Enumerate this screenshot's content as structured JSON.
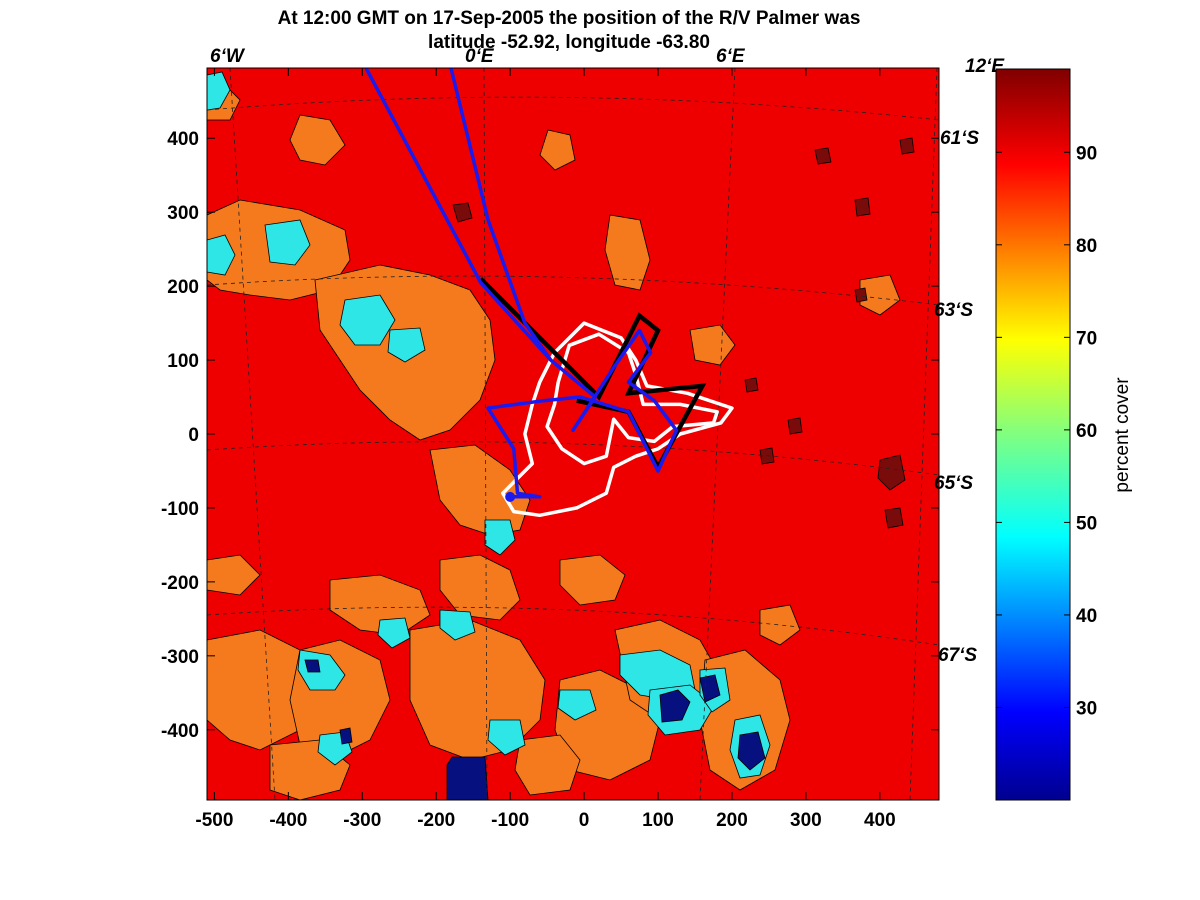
{
  "chart_data": {
    "type": "contour",
    "title_line1": "At 12:00 GMT on 17-Sep-2005 the position of the R/V Palmer was",
    "title_line2": "latitude -52.92, longitude -63.80",
    "xlim": [
      -510,
      480
    ],
    "ylim": [
      -495,
      495
    ],
    "x_ticks": [
      -500,
      -400,
      -300,
      -200,
      -100,
      0,
      100,
      200,
      300,
      400
    ],
    "y_ticks": [
      400,
      300,
      200,
      100,
      0,
      -100,
      -200,
      -300,
      -400
    ],
    "longitude_labels": [
      "6‘W",
      "0‘E",
      "6‘E",
      "12‘E"
    ],
    "latitude_labels": [
      "61‘S",
      "63‘S",
      "65‘S",
      "67‘S"
    ],
    "colorbar": {
      "label": "percent cover",
      "range": [
        20,
        99
      ],
      "ticks": [
        90,
        80,
        70,
        60,
        50,
        40,
        30
      ]
    },
    "colors": {
      "ice_90": "#ee0000",
      "ice_80": "#f57a1e",
      "ice_50": "#2ee6e6",
      "ice_30": "#06107e",
      "ice_98": "#7a0b0b",
      "ship_track": "#1a1aee",
      "black_track": "#000000",
      "white_contour": "#ffffff"
    },
    "ship_track": [
      [
        -295,
        495
      ],
      [
        -140,
        205
      ],
      [
        -45,
        100
      ],
      [
        15,
        50
      ],
      [
        -15,
        5
      ],
      [
        40,
        90
      ],
      [
        75,
        140
      ],
      [
        90,
        110
      ],
      [
        60,
        70
      ],
      [
        95,
        45
      ],
      [
        125,
        5
      ],
      [
        100,
        -50
      ],
      [
        60,
        30
      ],
      [
        -5,
        50
      ],
      [
        -55,
        45
      ],
      [
        -130,
        35
      ],
      [
        -95,
        -20
      ],
      [
        -90,
        -80
      ],
      [
        -60,
        -85
      ],
      [
        -100,
        -85
      ]
    ],
    "ship_track_2": [
      [
        -180,
        495
      ],
      [
        -130,
        290
      ],
      [
        -80,
        150
      ],
      [
        -45,
        100
      ]
    ],
    "black_track": [
      [
        -140,
        210
      ],
      [
        20,
        50
      ],
      [
        75,
        160
      ],
      [
        100,
        140
      ],
      [
        60,
        55
      ],
      [
        160,
        65
      ],
      [
        100,
        -45
      ],
      [
        60,
        30
      ],
      [
        -10,
        45
      ]
    ],
    "white_contours": [
      [
        [
          -35,
          70
        ],
        [
          -20,
          120
        ],
        [
          20,
          135
        ],
        [
          60,
          110
        ],
        [
          70,
          80
        ],
        [
          80,
          40
        ],
        [
          130,
          40
        ],
        [
          180,
          30
        ],
        [
          175,
          15
        ],
        [
          120,
          10
        ],
        [
          95,
          -10
        ],
        [
          60,
          -5
        ],
        [
          40,
          20
        ],
        [
          30,
          -30
        ],
        [
          0,
          -40
        ],
        [
          -30,
          -20
        ],
        [
          -50,
          10
        ],
        [
          -40,
          40
        ],
        [
          -35,
          70
        ]
      ],
      [
        [
          -60,
          70
        ],
        [
          -40,
          110
        ],
        [
          0,
          150
        ],
        [
          50,
          130
        ],
        [
          70,
          100
        ],
        [
          85,
          65
        ],
        [
          140,
          55
        ],
        [
          200,
          35
        ],
        [
          185,
          15
        ],
        [
          130,
          0
        ],
        [
          100,
          -20
        ],
        [
          70,
          -30
        ],
        [
          40,
          -45
        ],
        [
          30,
          -80
        ],
        [
          -10,
          -100
        ],
        [
          -60,
          -110
        ],
        [
          -95,
          -105
        ],
        [
          -110,
          -80
        ],
        [
          -90,
          -60
        ],
        [
          -70,
          -40
        ],
        [
          -80,
          0
        ],
        [
          -70,
          40
        ],
        [
          -60,
          70
        ]
      ]
    ]
  }
}
